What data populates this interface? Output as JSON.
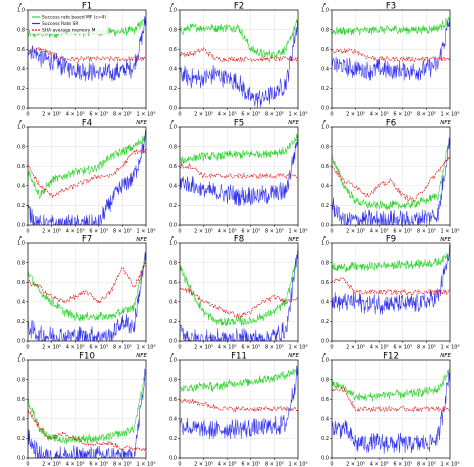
{
  "legend": {
    "entries": [
      {
        "label": "Success rate based MF (c=4)",
        "color": "#2bd12b"
      },
      {
        "label": "Success Rate SR",
        "color": "#3030ee"
      },
      {
        "label": "SHA average memory M",
        "color": "#dd1c1c"
      }
    ]
  },
  "chart_data": {
    "type": "line",
    "xlabel": "NFE",
    "ylabel": "F",
    "xlim": [
      0,
      1000000
    ],
    "ylim": [
      0,
      1
    ],
    "xticks": [
      0,
      200000,
      400000,
      600000,
      800000,
      1000000
    ],
    "xtick_labels": [
      "0",
      "2 × 10⁵",
      "4 × 10⁵",
      "6 × 10⁵",
      "8 × 10⁵",
      "1 × 10⁶"
    ],
    "yticks": [
      0,
      0.2,
      0.4,
      0.6,
      0.8,
      1.0
    ],
    "ytick_labels": [
      "0.0",
      "0.2",
      "0.4",
      "0.6",
      "0.8",
      "1.0"
    ],
    "grid": true,
    "legend_position": "top-left of first panel",
    "x": [
      0,
      100000,
      200000,
      300000,
      400000,
      500000,
      600000,
      700000,
      800000,
      900000,
      1000000
    ],
    "panels": [
      {
        "title": "F1",
        "series": [
          {
            "values": [
              0.75,
              0.76,
              0.76,
              0.77,
              0.77,
              0.77,
              0.78,
              0.78,
              0.78,
              0.79,
              0.9
            ]
          },
          {
            "values": [
              0.62,
              0.52,
              0.48,
              0.42,
              0.4,
              0.38,
              0.36,
              0.35,
              0.38,
              0.42,
              0.9
            ]
          },
          {
            "values": [
              0.58,
              0.6,
              0.55,
              0.5,
              0.5,
              0.5,
              0.5,
              0.5,
              0.5,
              0.5,
              0.5
            ]
          }
        ]
      },
      {
        "title": "F2",
        "series": [
          {
            "values": [
              0.78,
              0.82,
              0.82,
              0.82,
              0.82,
              0.82,
              0.6,
              0.55,
              0.55,
              0.6,
              0.9
            ]
          },
          {
            "values": [
              0.35,
              0.3,
              0.3,
              0.35,
              0.3,
              0.25,
              0.1,
              0.1,
              0.15,
              0.25,
              0.9
            ]
          },
          {
            "values": [
              0.55,
              0.55,
              0.6,
              0.5,
              0.5,
              0.5,
              0.5,
              0.5,
              0.5,
              0.5,
              0.5
            ]
          }
        ]
      },
      {
        "title": "F3",
        "series": [
          {
            "values": [
              0.78,
              0.79,
              0.79,
              0.79,
              0.8,
              0.8,
              0.8,
              0.8,
              0.8,
              0.82,
              0.9
            ]
          },
          {
            "values": [
              0.45,
              0.42,
              0.4,
              0.38,
              0.4,
              0.38,
              0.38,
              0.38,
              0.4,
              0.45,
              0.9
            ]
          },
          {
            "values": [
              0.58,
              0.58,
              0.58,
              0.52,
              0.5,
              0.5,
              0.5,
              0.5,
              0.5,
              0.5,
              0.5
            ]
          }
        ]
      },
      {
        "title": "F4",
        "series": [
          {
            "values": [
              0.55,
              0.3,
              0.45,
              0.5,
              0.55,
              0.55,
              0.6,
              0.7,
              0.75,
              0.8,
              0.9
            ]
          },
          {
            "values": [
              0.15,
              0.0,
              0.0,
              0.0,
              0.0,
              0.0,
              0.0,
              0.25,
              0.4,
              0.5,
              0.9
            ]
          },
          {
            "values": [
              0.6,
              0.4,
              0.3,
              0.35,
              0.4,
              0.45,
              0.5,
              0.5,
              0.6,
              0.75,
              0.75
            ]
          }
        ]
      },
      {
        "title": "F5",
        "series": [
          {
            "values": [
              0.65,
              0.68,
              0.7,
              0.7,
              0.71,
              0.72,
              0.72,
              0.73,
              0.74,
              0.75,
              0.9
            ]
          },
          {
            "values": [
              0.45,
              0.4,
              0.35,
              0.33,
              0.32,
              0.3,
              0.3,
              0.3,
              0.32,
              0.35,
              0.9
            ]
          },
          {
            "values": [
              0.6,
              0.6,
              0.5,
              0.5,
              0.5,
              0.5,
              0.5,
              0.5,
              0.5,
              0.5,
              0.5
            ]
          }
        ]
      },
      {
        "title": "F6",
        "series": [
          {
            "values": [
              0.7,
              0.4,
              0.25,
              0.2,
              0.2,
              0.2,
              0.2,
              0.22,
              0.25,
              0.3,
              0.9
            ]
          },
          {
            "values": [
              0.2,
              0.05,
              0.05,
              0.05,
              0.05,
              0.05,
              0.05,
              0.05,
              0.08,
              0.1,
              0.9
            ]
          },
          {
            "values": [
              0.6,
              0.45,
              0.4,
              0.3,
              0.4,
              0.45,
              0.3,
              0.25,
              0.4,
              0.55,
              0.7
            ]
          }
        ]
      },
      {
        "title": "F7",
        "series": [
          {
            "values": [
              0.7,
              0.5,
              0.4,
              0.3,
              0.25,
              0.25,
              0.25,
              0.25,
              0.3,
              0.35,
              0.9
            ]
          },
          {
            "values": [
              0.15,
              0.05,
              0.05,
              0.05,
              0.05,
              0.05,
              0.05,
              0.05,
              0.2,
              0.15,
              0.9
            ]
          },
          {
            "values": [
              0.6,
              0.55,
              0.45,
              0.4,
              0.45,
              0.5,
              0.4,
              0.5,
              0.75,
              0.55,
              0.8
            ]
          }
        ]
      },
      {
        "title": "F8",
        "series": [
          {
            "values": [
              0.75,
              0.5,
              0.3,
              0.2,
              0.2,
              0.2,
              0.2,
              0.25,
              0.3,
              0.4,
              0.9
            ]
          },
          {
            "values": [
              0.1,
              0.02,
              0.02,
              0.02,
              0.02,
              0.02,
              0.02,
              0.02,
              0.05,
              0.1,
              0.9
            ]
          },
          {
            "values": [
              0.55,
              0.5,
              0.4,
              0.35,
              0.3,
              0.25,
              0.3,
              0.4,
              0.45,
              0.4,
              0.45
            ]
          }
        ]
      },
      {
        "title": "F9",
        "series": [
          {
            "values": [
              0.75,
              0.75,
              0.76,
              0.76,
              0.77,
              0.77,
              0.78,
              0.78,
              0.79,
              0.8,
              0.9
            ]
          },
          {
            "values": [
              0.4,
              0.4,
              0.4,
              0.38,
              0.38,
              0.38,
              0.38,
              0.38,
              0.4,
              0.45,
              0.9
            ]
          },
          {
            "values": [
              0.62,
              0.62,
              0.5,
              0.5,
              0.5,
              0.5,
              0.5,
              0.5,
              0.5,
              0.5,
              0.5
            ]
          }
        ]
      },
      {
        "title": "F10",
        "series": [
          {
            "values": [
              0.6,
              0.3,
              0.2,
              0.18,
              0.2,
              0.2,
              0.2,
              0.22,
              0.25,
              0.3,
              0.9
            ]
          },
          {
            "values": [
              0.2,
              0.02,
              0.02,
              0.02,
              0.02,
              0.02,
              0.02,
              0.02,
              0.02,
              0.02,
              0.9
            ]
          },
          {
            "values": [
              0.5,
              0.3,
              0.2,
              0.25,
              0.2,
              0.15,
              0.15,
              0.15,
              0.1,
              0.1,
              0.1
            ]
          }
        ]
      },
      {
        "title": "F11",
        "series": [
          {
            "values": [
              0.7,
              0.72,
              0.74,
              0.72,
              0.75,
              0.77,
              0.78,
              0.8,
              0.82,
              0.85,
              0.9
            ]
          },
          {
            "values": [
              0.35,
              0.3,
              0.28,
              0.28,
              0.3,
              0.3,
              0.3,
              0.3,
              0.32,
              0.35,
              0.9
            ]
          },
          {
            "values": [
              0.58,
              0.58,
              0.55,
              0.52,
              0.5,
              0.5,
              0.5,
              0.5,
              0.5,
              0.5,
              0.5
            ]
          }
        ]
      },
      {
        "title": "F12",
        "series": [
          {
            "values": [
              0.75,
              0.72,
              0.62,
              0.62,
              0.64,
              0.65,
              0.65,
              0.66,
              0.68,
              0.7,
              0.9
            ]
          },
          {
            "values": [
              0.3,
              0.3,
              0.15,
              0.15,
              0.15,
              0.15,
              0.15,
              0.15,
              0.15,
              0.2,
              0.9
            ]
          },
          {
            "values": [
              0.7,
              0.7,
              0.5,
              0.5,
              0.5,
              0.5,
              0.5,
              0.5,
              0.5,
              0.5,
              0.5
            ]
          }
        ]
      }
    ]
  }
}
